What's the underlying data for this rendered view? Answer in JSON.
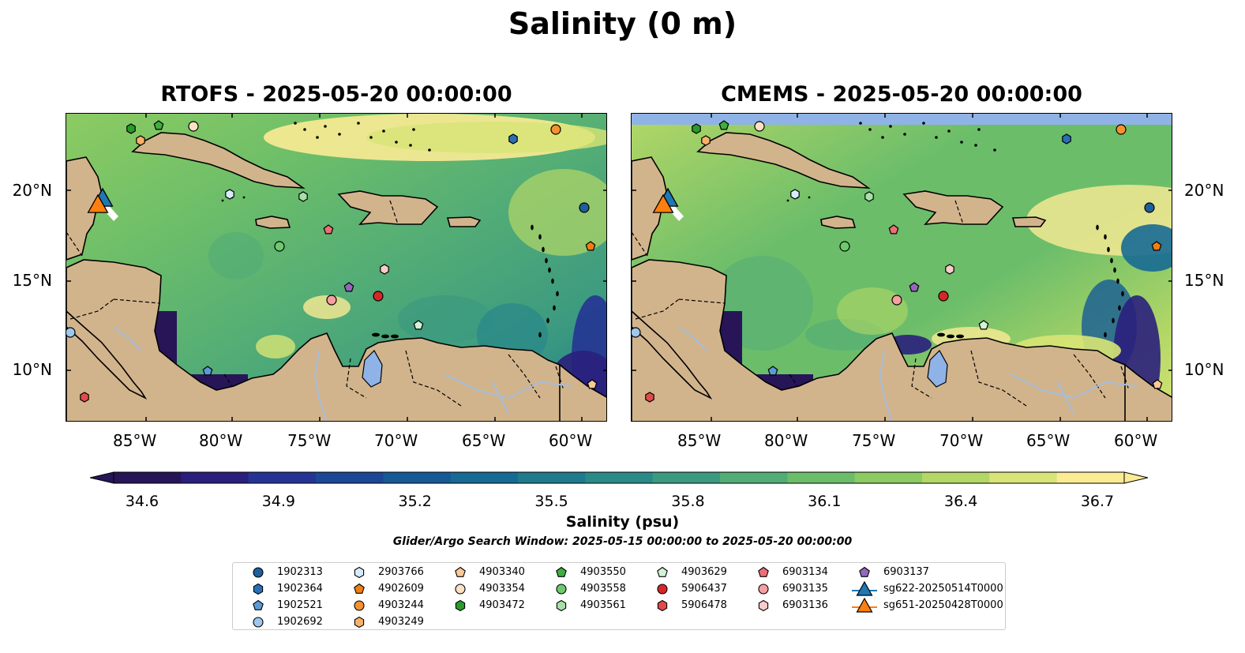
{
  "figure": {
    "title": "Salinity (0 m)",
    "colorbar_label": "Salinity (psu)",
    "colorbar_ticks": [
      "34.6",
      "34.9",
      "35.2",
      "35.5",
      "35.8",
      "36.1",
      "36.4",
      "36.7"
    ],
    "search_window": "Glider/Argo Search Window: 2025-05-15 00:00:00 to 2025-05-20 00:00:00"
  },
  "panels": [
    {
      "title": "RTOFS - 2025-05-20 00:00:00"
    },
    {
      "title": "CMEMS - 2025-05-20 00:00:00"
    }
  ],
  "axes": {
    "lon_ticks": [
      "85°W",
      "80°W",
      "75°W",
      "70°W",
      "65°W",
      "60°W"
    ],
    "lat_ticks": [
      "20°N",
      "15°N",
      "10°N"
    ]
  },
  "colors": {
    "land": "#d2b48c",
    "lake": "#8fb3e6",
    "river": "#a6bddb",
    "colormap": [
      "#271558",
      "#2a1f7c",
      "#253494",
      "#1c4696",
      "#155a96",
      "#176a93",
      "#1f7a8e",
      "#2a8a88",
      "#3c9a80",
      "#52ac76",
      "#6bbd6a",
      "#8ccb62",
      "#b3d766",
      "#d8e576",
      "#fbeb95"
    ]
  },
  "legend": {
    "items": [
      {
        "label": "1902313",
        "shape": "circle",
        "color": "#1f5f9a"
      },
      {
        "label": "1902364",
        "shape": "hexagon",
        "color": "#2a6fb5"
      },
      {
        "label": "1902521",
        "shape": "pentagon",
        "color": "#5b9bd5"
      },
      {
        "label": "1902692",
        "shape": "circle",
        "color": "#9ec7ec"
      },
      {
        "label": "2903766",
        "shape": "hexagon",
        "color": "#d7ebfa"
      },
      {
        "label": "4902609",
        "shape": "pentagon",
        "color": "#f07f10"
      },
      {
        "label": "4903244",
        "shape": "circle",
        "color": "#f5922f"
      },
      {
        "label": "4903249",
        "shape": "hexagon",
        "color": "#f9b16a"
      },
      {
        "label": "4903340",
        "shape": "pentagon",
        "color": "#fbc995"
      },
      {
        "label": "4903354",
        "shape": "circle",
        "color": "#fde1c4"
      },
      {
        "label": "4903472",
        "shape": "hexagon",
        "color": "#2a9a2a"
      },
      {
        "label": "4903550",
        "shape": "pentagon",
        "color": "#3fae3f"
      },
      {
        "label": "4903558",
        "shape": "circle",
        "color": "#6cca6c"
      },
      {
        "label": "4903561",
        "shape": "hexagon",
        "color": "#a6e0a6"
      },
      {
        "label": "4903629",
        "shape": "pentagon",
        "color": "#d4f1d4"
      },
      {
        "label": "5906437",
        "shape": "circle",
        "color": "#d62728"
      },
      {
        "label": "5906478",
        "shape": "hexagon",
        "color": "#e04a4b"
      },
      {
        "label": "6903134",
        "shape": "pentagon",
        "color": "#ec6f76"
      },
      {
        "label": "6903135",
        "shape": "circle",
        "color": "#f4a0a0"
      },
      {
        "label": "6903136",
        "shape": "hexagon",
        "color": "#fbcaca"
      },
      {
        "label": "6903137",
        "shape": "pentagon",
        "color": "#9467bd"
      },
      {
        "label": "sg622-20250514T0000",
        "shape": "triangle-line",
        "color": "#1f77b4"
      },
      {
        "label": "sg651-20250428T0000",
        "shape": "triangle-line",
        "color": "#ff7f0e"
      }
    ]
  }
}
